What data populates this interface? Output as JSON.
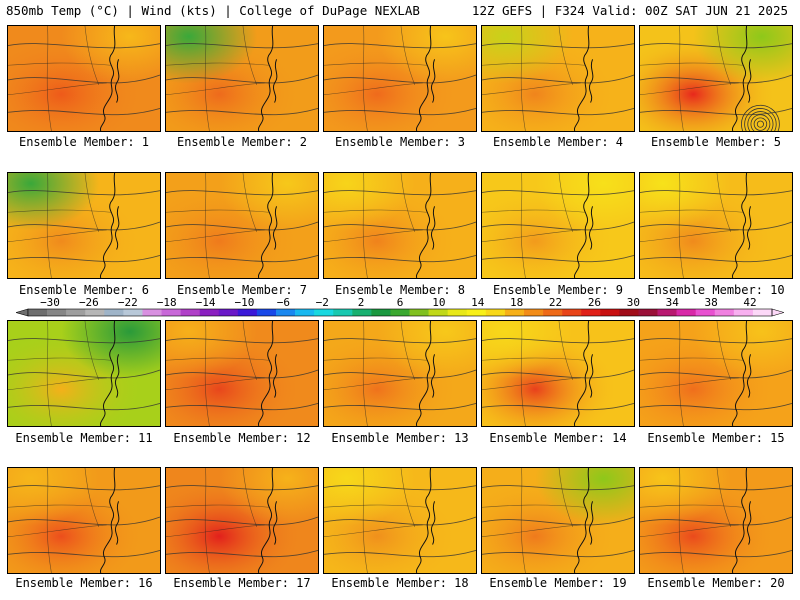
{
  "header": {
    "left": "850mb Temp (°C) | Wind (kts) | College of DuPage NEXLAB",
    "right": "12Z GEFS | F324 Valid: 00Z SAT JUN 21 2025"
  },
  "members": [
    {
      "label": "Ensemble Member: 1",
      "base": "#f08a1c",
      "hot": "#ee5a1a",
      "cool": "#f7b81a"
    },
    {
      "label": "Ensemble Member: 2",
      "base": "#f29c1a",
      "hot": "#ee6a1c",
      "cool": "#3aa83a"
    },
    {
      "label": "Ensemble Member: 3",
      "base": "#f39a1c",
      "hot": "#ef6a1c",
      "cool": "#f7c41a"
    },
    {
      "label": "Ensemble Member: 4",
      "base": "#f6b21a",
      "hot": "#f0841c",
      "cool": "#c8d21a"
    },
    {
      "label": "Ensemble Member: 5",
      "base": "#f4c21a",
      "hot": "#e8281c",
      "cool": "#8ec81a"
    },
    {
      "label": "Ensemble Member: 6",
      "base": "#f6b41a",
      "hot": "#f08a1c",
      "cool": "#3aa83a"
    },
    {
      "label": "Ensemble Member: 7",
      "base": "#f3a01a",
      "hot": "#ef7a1c",
      "cool": "#f6c81a"
    },
    {
      "label": "Ensemble Member: 8",
      "base": "#f6b01a",
      "hot": "#f0821c",
      "cool": "#f7d41a"
    },
    {
      "label": "Ensemble Member: 9",
      "base": "#f7c81a",
      "hot": "#f29a1c",
      "cool": "#f7e01a"
    },
    {
      "label": "Ensemble Member: 10",
      "base": "#f6bc1a",
      "hot": "#f08a1c",
      "cool": "#f7e21a"
    },
    {
      "label": "Ensemble Member: 11",
      "base": "#a8d01a",
      "hot": "#f4b01a",
      "cool": "#2a9a3a"
    },
    {
      "label": "Ensemble Member: 12",
      "base": "#f08a1c",
      "hot": "#e8461c",
      "cool": "#f6b01a"
    },
    {
      "label": "Ensemble Member: 13",
      "base": "#f4a81a",
      "hot": "#ef721c",
      "cool": "#f7c81a"
    },
    {
      "label": "Ensemble Member: 14",
      "base": "#f7c21a",
      "hot": "#e8401c",
      "cool": "#f7d81a"
    },
    {
      "label": "Ensemble Member: 15",
      "base": "#f5a21a",
      "hot": "#ef6e1c",
      "cool": "#f7c21a"
    },
    {
      "label": "Ensemble Member: 16",
      "base": "#f29a1a",
      "hot": "#ec4e1c",
      "cool": "#f6b61a"
    },
    {
      "label": "Ensemble Member: 17",
      "base": "#ef861c",
      "hot": "#e2201c",
      "cool": "#f6b21a"
    },
    {
      "label": "Ensemble Member: 18",
      "base": "#f6b81a",
      "hot": "#f0901c",
      "cool": "#f7d81a"
    },
    {
      "label": "Ensemble Member: 19",
      "base": "#f5ae1a",
      "hot": "#ef7a1c",
      "cool": "#8ec81a"
    },
    {
      "label": "Ensemble Member: 20",
      "base": "#f39a1a",
      "hot": "#ea4a1c",
      "cool": "#f7c41a"
    }
  ],
  "colorbar": {
    "labels": [
      "−30",
      "−26",
      "−22",
      "−18",
      "−14",
      "−10",
      "−6",
      "−2",
      "2",
      "6",
      "10",
      "14",
      "18",
      "22",
      "26",
      "30",
      "34",
      "38",
      "42"
    ],
    "colors": [
      "#6e6e6e",
      "#868686",
      "#9e9e9e",
      "#b6b6b6",
      "#9fb4c8",
      "#b8c8d8",
      "#d890e0",
      "#c868d8",
      "#b040c8",
      "#8a1fc0",
      "#6a18c8",
      "#3a18d8",
      "#1848e8",
      "#1a88f0",
      "#18b8f0",
      "#18d8e0",
      "#18c8b0",
      "#18b070",
      "#1a9840",
      "#3aa830",
      "#80c020",
      "#c0d818",
      "#e8e818",
      "#f8f018",
      "#f8d818",
      "#f6b018",
      "#f28c18",
      "#ee6a18",
      "#e84418",
      "#e02018",
      "#c81010",
      "#a00c18",
      "#9a1038",
      "#b81870",
      "#d828a8",
      "#e850d0",
      "#f080e0",
      "#f8b0f0",
      "#fcd8f8"
    ]
  }
}
